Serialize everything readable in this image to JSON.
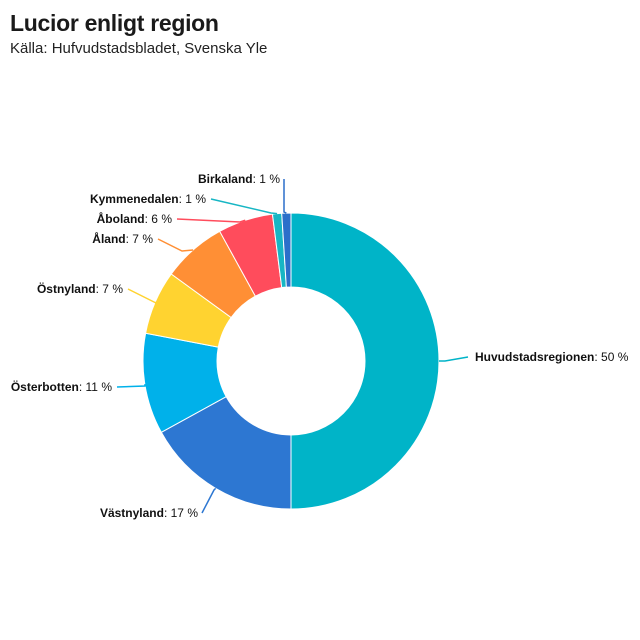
{
  "title": "Lucior enligt region",
  "subtitle": "Källa: Hufvudstadsbladet, Svenska Yle",
  "chart_data": {
    "type": "pie",
    "variant": "donut",
    "unit_suffix": " %",
    "slices": [
      {
        "name": "Huvudstadsregionen",
        "value": 50,
        "color": "#00b4c8"
      },
      {
        "name": "Västnyland",
        "value": 17,
        "color": "#2d77d2"
      },
      {
        "name": "Österbotten",
        "value": 11,
        "color": "#00b1ea"
      },
      {
        "name": "Östnyland",
        "value": 7,
        "color": "#ffd330"
      },
      {
        "name": "Åland",
        "value": 7,
        "color": "#ff8f35"
      },
      {
        "name": "Åboland",
        "value": 6,
        "color": "#ff4c5c"
      },
      {
        "name": "Kymmenedalen",
        "value": 1,
        "color": "#17b6c4"
      },
      {
        "name": "Birkaland",
        "value": 1,
        "color": "#2b6fca"
      }
    ]
  }
}
